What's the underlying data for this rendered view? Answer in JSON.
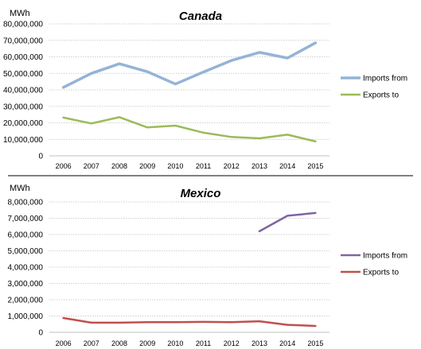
{
  "chart_data": [
    {
      "type": "line",
      "title": "Canada",
      "ylabel": "MWh",
      "xlabel": "",
      "x": [
        "2006",
        "2007",
        "2008",
        "2009",
        "2010",
        "2011",
        "2012",
        "2013",
        "2014",
        "2015"
      ],
      "ylim": [
        0,
        80000000
      ],
      "yticks": [
        "0",
        "10,000,000",
        "20,000,000",
        "30,000,000",
        "40,000,000",
        "50,000,000",
        "60,000,000",
        "70,000,000",
        "80,000,000"
      ],
      "grid": true,
      "legend_position": "right",
      "series": [
        {
          "name": "Imports from",
          "color": "#95b3d7",
          "values": [
            41500000,
            50000000,
            55800000,
            51000000,
            43500000,
            50800000,
            57800000,
            62700000,
            59300000,
            68500000
          ]
        },
        {
          "name": "Exports to",
          "color": "#9bbb59",
          "values": [
            23200000,
            19600000,
            23400000,
            17200000,
            18300000,
            14000000,
            11400000,
            10600000,
            12800000,
            8700000
          ]
        }
      ]
    },
    {
      "type": "line",
      "title": "Mexico",
      "ylabel": "MWh",
      "xlabel": "",
      "x": [
        "2006",
        "2007",
        "2008",
        "2009",
        "2010",
        "2011",
        "2012",
        "2013",
        "2014",
        "2015"
      ],
      "ylim": [
        0,
        8000000
      ],
      "yticks": [
        "0",
        "1,000,000",
        "2,000,000",
        "3,000,000",
        "4,000,000",
        "5,000,000",
        "6,000,000",
        "7,000,000",
        "8,000,000"
      ],
      "grid": true,
      "legend_position": "right",
      "series": [
        {
          "name": "Imports from",
          "color": "#8064a2",
          "values": [
            null,
            null,
            null,
            null,
            null,
            null,
            null,
            6200000,
            7150000,
            7320000
          ]
        },
        {
          "name": "Exports to",
          "color": "#c0504d",
          "values": [
            880000,
            590000,
            590000,
            620000,
            620000,
            640000,
            620000,
            680000,
            460000,
            390000
          ]
        }
      ]
    }
  ]
}
